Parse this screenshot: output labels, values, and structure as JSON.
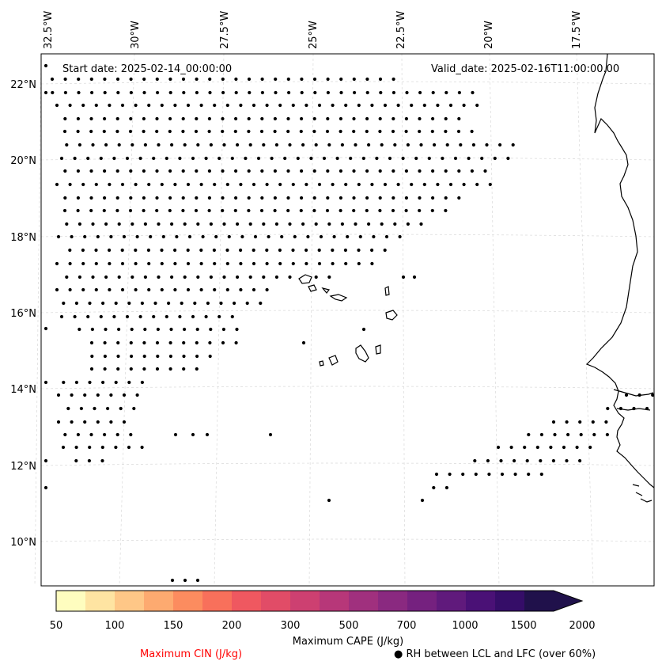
{
  "map": {
    "start_label": "Start date: 2025-02-14_00:00:00",
    "valid_label": "Valid_date: 2025-02-16T11:00:00.00",
    "top_lon_labels": [
      "32.5°W",
      "30°W",
      "27.5°W",
      "25°W",
      "22.5°W",
      "20°W",
      "17.5°W"
    ],
    "left_lat_labels": [
      "22°N",
      "20°N",
      "18°N",
      "16°N",
      "14°N",
      "12°N",
      "10°N"
    ],
    "coast_color": "#000000",
    "grid_color": "#d9d9d9",
    "dot_color": "#000000"
  },
  "colorbar": {
    "title": "Maximum CAPE (J/kg)",
    "tick_labels": [
      "50",
      "100",
      "150",
      "200",
      "300",
      "500",
      "700",
      "1000",
      "1500",
      "2000"
    ],
    "colors": [
      "#fefdbf",
      "#fee4a2",
      "#fec787",
      "#fdaa70",
      "#fc8c5f",
      "#f8705b",
      "#ef5860",
      "#e14c67",
      "#cd4071",
      "#b73779",
      "#a0307e",
      "#8a2980",
      "#75217f",
      "#601a7c",
      "#4a1176",
      "#350d68",
      "#20114b"
    ]
  },
  "legend": {
    "cin_label": "Maximum CIN (J/kg)",
    "cin_color": "#ff0000",
    "rh_label": "RH between LCL and LFC (over 60%)",
    "rh_marker": "●"
  }
}
